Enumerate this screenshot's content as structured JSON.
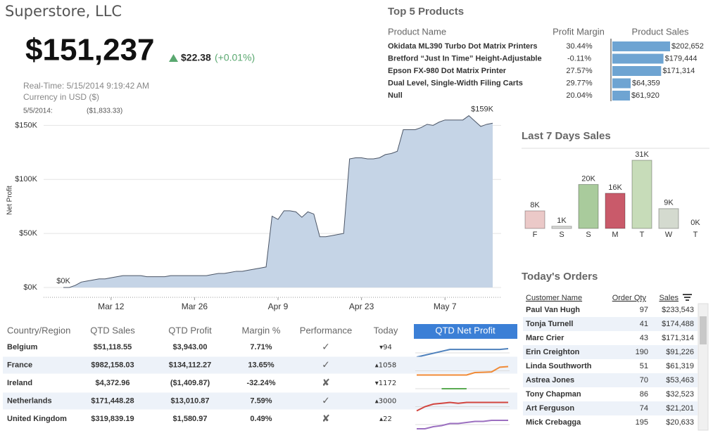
{
  "header": {
    "title": "Superstore, LLC",
    "total": "$151,237",
    "change": "$22.38",
    "change_pct": "(+0.01%)",
    "realtime": "Real-Time: 5/15/2014 9:19:42 AM",
    "currency": "Currency in USD ($)",
    "hover_date": "5/5/2014:",
    "hover_value": "($1,833.33)"
  },
  "chart_data": [
    {
      "type": "area",
      "y_label": "Net Profit",
      "x": [
        "Mar 4",
        "Mar 5",
        "Mar 6",
        "Mar 7",
        "Mar 8",
        "Mar 9",
        "Mar 10",
        "Mar 11",
        "Mar 12",
        "Mar 13",
        "Mar 14",
        "Mar 15",
        "Mar 16",
        "Mar 17",
        "Mar 18",
        "Mar 19",
        "Mar 20",
        "Mar 21",
        "Mar 22",
        "Mar 23",
        "Mar 24",
        "Mar 25",
        "Mar 26",
        "Mar 27",
        "Mar 28",
        "Mar 29",
        "Mar 30",
        "Mar 31",
        "Apr 1",
        "Apr 2",
        "Apr 3",
        "Apr 4",
        "Apr 5",
        "Apr 6",
        "Apr 7",
        "Apr 8",
        "Apr 9",
        "Apr 10",
        "Apr 11",
        "Apr 12",
        "Apr 13",
        "Apr 14",
        "Apr 15",
        "Apr 16",
        "Apr 17",
        "Apr 18",
        "Apr 19",
        "Apr 20",
        "Apr 21",
        "Apr 22",
        "Apr 23",
        "Apr 24",
        "Apr 25",
        "Apr 26",
        "Apr 27",
        "Apr 28",
        "Apr 29",
        "Apr 30",
        "May 1",
        "May 2",
        "May 3",
        "May 4",
        "May 5",
        "May 6",
        "May 7",
        "May 8",
        "May 9",
        "May 10",
        "May 11",
        "May 12",
        "May 13",
        "May 14",
        "May 15"
      ],
      "values": [
        0,
        0,
        2,
        5,
        6,
        7,
        8,
        8,
        9,
        10,
        11,
        11,
        11,
        11,
        10,
        10,
        10,
        10,
        11,
        11,
        11,
        11,
        11,
        11,
        11,
        12,
        13,
        13,
        14,
        15,
        15,
        16,
        17,
        18,
        19,
        66,
        63,
        71,
        71,
        70,
        65,
        70,
        68,
        47,
        47,
        48,
        49,
        50,
        119,
        120,
        120,
        119,
        119,
        120,
        123,
        124,
        126,
        146,
        146,
        146,
        148,
        151,
        150,
        153,
        155,
        155,
        155,
        155,
        159,
        154,
        149,
        151,
        152
      ],
      "value_labels": [
        "$0K",
        null,
        null,
        null,
        null,
        null,
        null,
        null,
        null,
        null,
        null,
        null,
        null,
        null,
        null,
        null,
        null,
        null,
        null,
        null,
        null,
        null,
        null,
        null,
        null,
        null,
        null,
        null,
        null,
        null,
        null,
        null,
        null,
        null,
        null,
        null,
        null,
        null,
        null,
        null,
        null,
        null,
        null,
        null,
        null,
        null,
        null,
        null,
        null,
        null,
        null,
        null,
        null,
        null,
        null,
        null,
        null,
        null,
        null,
        null,
        null,
        null,
        null,
        null,
        null,
        null,
        null,
        null,
        "$159K",
        null,
        null,
        null,
        null
      ],
      "color": "#c5d4e6",
      "line_color": "#4b5566",
      "xticks": [
        "Mar 12",
        "Mar 26",
        "Apr 9",
        "Apr 23",
        "May 7"
      ],
      "ylim": [
        0,
        160
      ],
      "yticks": [
        {
          "value": 0,
          "label": "$0K"
        },
        {
          "value": 50,
          "label": "$50K"
        },
        {
          "value": 100,
          "label": "$100K"
        },
        {
          "value": 150,
          "label": "$150K"
        }
      ],
      "grid": true
    },
    {
      "type": "bar",
      "title": "Last 7 Days Sales",
      "categories": [
        "F",
        "S",
        "S",
        "M",
        "T",
        "W",
        "T"
      ],
      "values": [
        8,
        1,
        20,
        16,
        31,
        9,
        0
      ],
      "value_labels": [
        "8K",
        "1K",
        "20K",
        "16K",
        "31K",
        "9K",
        "0K"
      ],
      "colors": [
        "#ebc9c8",
        "#dcdedb",
        "#a9cb9c",
        "#c95a6a",
        "#c7dcb9",
        "#d4dacf",
        "#dcdedb"
      ]
    }
  ],
  "top_products": {
    "title": "Top 5 Products",
    "headers": [
      "Product Name",
      "Profit Margin",
      "Product Sales"
    ],
    "color": "#6ea4d2",
    "names": [
      "Okidata ML390 Turbo Dot Matrix Printers",
      "Bretford “Just In Time” Height-Adjustable",
      "Epson FX-980 Dot Matrix Printer",
      "Dual Level, Single-Width Filing Carts",
      "Null"
    ],
    "margins": [
      "30.44%",
      "-0.11%",
      "27.57%",
      "29.77%",
      "20.04%"
    ],
    "sales": [
      202652,
      179444,
      171314,
      64359,
      61920
    ],
    "sales_labels": [
      "$202,652",
      "$179,444",
      "$171,314",
      "$64,359",
      "$61,920"
    ]
  },
  "todays_orders": {
    "title": "Today's Orders",
    "headers": [
      "Customer Name",
      "Order Qty",
      "Sales"
    ],
    "rows": [
      [
        "Paul Van Hugh",
        97,
        "$233,543"
      ],
      [
        "Tonja Turnell",
        41,
        "$174,488"
      ],
      [
        "Marc Crier",
        43,
        "$171,314"
      ],
      [
        "Erin Creighton",
        190,
        "$91,226"
      ],
      [
        "Linda Southworth",
        51,
        "$61,319"
      ],
      [
        "Astrea Jones",
        70,
        "$53,463"
      ],
      [
        "Tony Chapman",
        86,
        "$32,523"
      ],
      [
        "Art Ferguson",
        74,
        "$21,201"
      ],
      [
        "Mick Crebagga",
        195,
        "$20,633"
      ]
    ]
  },
  "countries": {
    "headers": [
      "Country/Region",
      "QTD Sales",
      "QTD Profit",
      "Margin %",
      "Performance",
      "Today",
      "QTD Net Profit"
    ],
    "rows": [
      {
        "cells": [
          "Belgium",
          "$51,118.55",
          "$3,943.00",
          "7.71%",
          "✓",
          "▾94"
        ],
        "color": "#4e81bd",
        "net_profit": [
          3.5,
          3.6,
          3.7,
          3.8,
          3.9,
          3.9,
          3.9,
          3.9,
          3.9,
          3.9,
          3.9,
          3.94
        ]
      },
      {
        "cells": [
          "France",
          "$982,158.03",
          "$134,112.27",
          "13.65%",
          "✓",
          "▴1058"
        ],
        "color": "#f08a36",
        "net_profit": [
          2,
          2,
          2,
          2,
          2,
          2,
          2,
          40,
          45,
          50,
          125,
          134
        ]
      },
      {
        "cells": [
          "Ireland",
          "$4,372.96",
          "($1,409.87)",
          "-32.24%",
          "✘",
          "▾1172"
        ],
        "color": "#5aaa52",
        "net_profit": [
          null,
          null,
          null,
          -1.4,
          -1.4,
          -1.4,
          -1.4,
          null,
          null,
          null,
          null,
          null
        ]
      },
      {
        "cells": [
          "Netherlands",
          "$171,448.28",
          "$13,010.87",
          "7.59%",
          "✓",
          "▴3000"
        ],
        "color": "#d2453f",
        "net_profit": [
          12,
          12.5,
          12.8,
          12.9,
          13,
          12.9,
          13,
          13,
          13,
          13,
          13,
          13
        ]
      },
      {
        "cells": [
          "United Kingdom",
          "$319,839.19",
          "$1,580.97",
          "0.49%",
          "✘",
          "▴22"
        ],
        "color": "#9b6fc0",
        "net_profit": [
          1.5,
          1.5,
          1.52,
          1.53,
          1.55,
          1.55,
          1.56,
          1.57,
          1.57,
          1.58,
          1.58,
          1.58
        ]
      }
    ]
  }
}
